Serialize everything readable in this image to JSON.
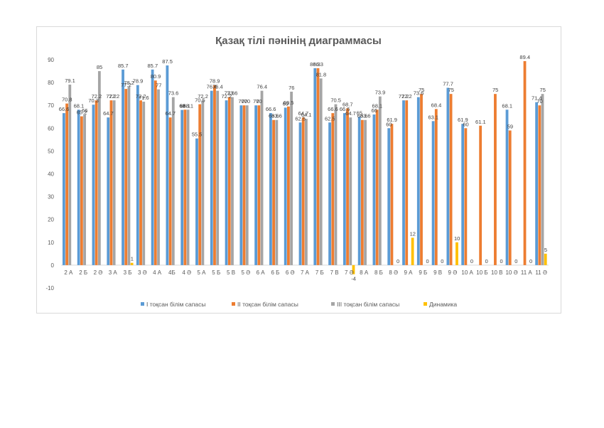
{
  "chart_data": {
    "type": "bar",
    "title": "Қазақ тілі пәнінің диаграммасы",
    "xlabel": "",
    "ylabel": "",
    "ylim": [
      -10,
      90
    ],
    "yticks": [
      -10,
      0,
      10,
      20,
      30,
      40,
      50,
      60,
      70,
      80,
      90
    ],
    "grid": false,
    "legend_position": "bottom",
    "categories": [
      "2 А",
      "2 Б",
      "2 Ә",
      "3 А",
      "3 Б",
      "3 Ә",
      "4 А",
      "4Б",
      "4 Ә",
      "5 А",
      "5 Б",
      "5 В",
      "5 Ә",
      "6 А",
      "6 Б",
      "6 Ә",
      "7 А",
      "7 Б",
      "7 В",
      "7 Ә",
      "8 А",
      "8 Б",
      "8 Ә",
      "9 А",
      "9 Б",
      "9 В",
      "9 Ә",
      "10 А",
      "10 Б",
      "10 В",
      "10 Ә",
      "11 А",
      "11 Ә"
    ],
    "series": [
      {
        "name": "I тоқсан білім сапасы",
        "color": "#5b9bd5",
        "values": [
          66.6,
          68.1,
          70.3,
          64.7,
          85.7,
          78.9,
          85.7,
          87.5,
          68,
          55.5,
          76.4,
          72.2,
          70,
          70,
          66.6,
          69,
          62.5,
          86.3,
          62.5,
          66.6,
          65,
          66,
          60,
          72.2,
          73.6,
          63.1,
          77.7,
          61.9,
          null,
          null,
          68.1,
          null,
          71.4
        ]
      },
      {
        "name": "II тоқсан білім сапасы",
        "color": "#ed7d31",
        "values": [
          70.8,
          65.2,
          72.2,
          72.2,
          77.2,
          72.2,
          80.9,
          64.7,
          68.1,
          70.5,
          78.9,
          73.6,
          70,
          70,
          63.6,
          69.5,
          64.7,
          86.3,
          66.6,
          68.7,
          63.6,
          68.1,
          61.9,
          72.2,
          75,
          68.4,
          75,
          60,
          61.1,
          75,
          59,
          89.4,
          70
        ]
      },
      {
        "name": "III тоқсан білім сапасы",
        "color": "#a5a5a5",
        "values": [
          79.1,
          66,
          85,
          72.2,
          78.2,
          71.6,
          77,
          73.6,
          68.1,
          72.2,
          76.4,
          73.6,
          70,
          76.4,
          63.6,
          76,
          64.1,
          81.8,
          70.5,
          64.7,
          63.6,
          73.9,
          null,
          null,
          null,
          null,
          null,
          null,
          null,
          null,
          null,
          null,
          75
        ]
      },
      {
        "name": "Динамика",
        "color": "#ffc000",
        "values": [
          null,
          null,
          null,
          null,
          1,
          null,
          null,
          null,
          null,
          null,
          null,
          null,
          null,
          null,
          null,
          null,
          null,
          null,
          null,
          -4,
          null,
          null,
          0,
          12,
          0,
          0,
          10,
          0,
          0,
          0,
          0,
          0,
          5
        ]
      }
    ]
  }
}
